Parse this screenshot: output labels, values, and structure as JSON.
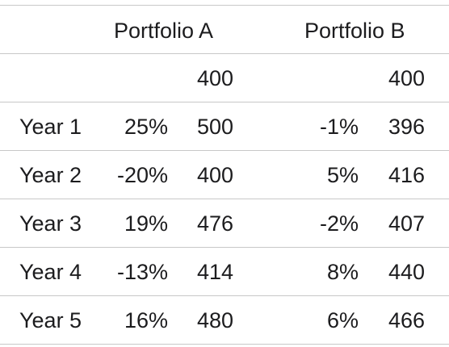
{
  "headers": {
    "portfolio_a": "Portfolio A",
    "portfolio_b": "Portfolio B"
  },
  "initial": {
    "a_value": "400",
    "b_value": "400"
  },
  "rows": [
    {
      "label": "Year 1",
      "a_pct": "25%",
      "a_value": "500",
      "b_pct": "-1%",
      "b_value": "396"
    },
    {
      "label": "Year 2",
      "a_pct": "-20%",
      "a_value": "400",
      "b_pct": "5%",
      "b_value": "416"
    },
    {
      "label": "Year 3",
      "a_pct": "19%",
      "a_value": "476",
      "b_pct": "-2%",
      "b_value": "407"
    },
    {
      "label": "Year 4",
      "a_pct": "-13%",
      "a_value": "414",
      "b_pct": "8%",
      "b_value": "440"
    },
    {
      "label": "Year 5",
      "a_pct": "16%",
      "a_value": "480",
      "b_pct": "6%",
      "b_value": "466"
    }
  ]
}
